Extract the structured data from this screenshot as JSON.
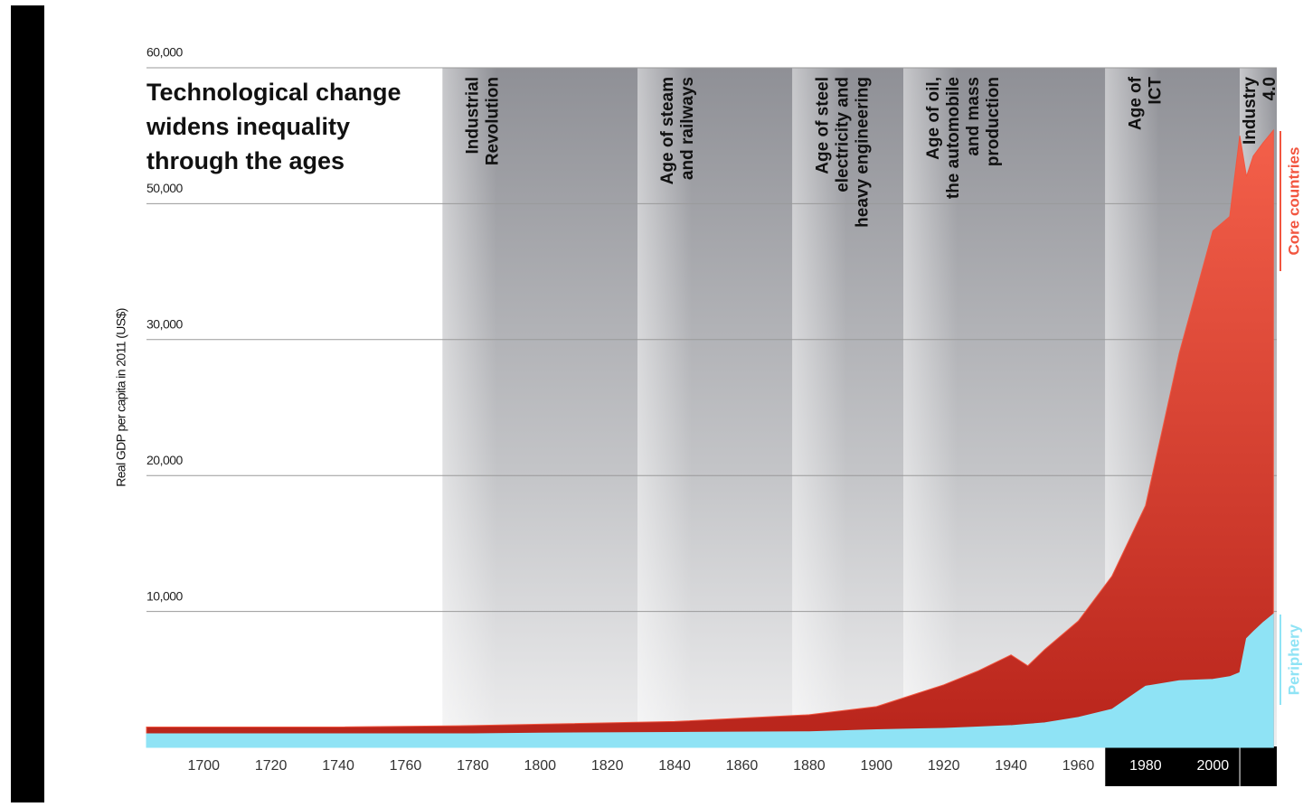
{
  "chart_data": {
    "type": "area",
    "title": [
      "Technological change",
      "widens inequality",
      "through the ages"
    ],
    "y_label": "Real GDP per capita in 2011 (US$)",
    "xlim": [
      1683,
      2019
    ],
    "xticks": [
      1700,
      1720,
      1740,
      1760,
      1780,
      1800,
      1820,
      1840,
      1860,
      1880,
      1900,
      1920,
      1940,
      1960,
      1980,
      2000
    ],
    "ylim": [
      0,
      60000
    ],
    "yticks": [
      {
        "value": 10000,
        "label": "10,000"
      },
      {
        "value": 20000,
        "label": "20,000"
      },
      {
        "value": 30000,
        "label": "30,000"
      },
      {
        "value": 50000,
        "label": "50,000"
      },
      {
        "value": 60000,
        "label": "60,000"
      }
    ],
    "grid": true,
    "eras": [
      {
        "lines": [
          "Industrial",
          "Revolution"
        ],
        "start": 1771,
        "end": 1829
      },
      {
        "lines": [
          "Age of steam",
          "and railways"
        ],
        "start": 1829,
        "end": 1875
      },
      {
        "lines": [
          "Age of steel",
          "electricity and",
          "heavy engineering"
        ],
        "start": 1875,
        "end": 1908
      },
      {
        "lines": [
          "Age of oil,",
          "the automobile",
          "and mass",
          "production"
        ],
        "start": 1908,
        "end": 1968
      },
      {
        "lines": [
          "Age of",
          "ICT"
        ],
        "start": 1968,
        "end": 2008
      },
      {
        "lines": [
          "Industry",
          "4.0"
        ],
        "start": 2008,
        "end": 2019
      }
    ],
    "x": [
      1683,
      1700,
      1740,
      1780,
      1800,
      1840,
      1880,
      1900,
      1920,
      1930,
      1940,
      1945,
      1950,
      1960,
      1970,
      1980,
      1990,
      2000,
      2005,
      2008,
      2010,
      2012,
      2015,
      2018
    ],
    "series": [
      {
        "name": "Core countries",
        "color": "#f2553f",
        "values": [
          1500,
          1500,
          1500,
          1600,
          1700,
          1900,
          2400,
          3000,
          4600,
          5600,
          6800,
          6000,
          7200,
          9300,
          12600,
          17800,
          29000,
          46000,
          48100,
          55000,
          52000,
          53500,
          54500,
          55400
        ]
      },
      {
        "name": "Periphery",
        "color": "#8fe3f5",
        "values": [
          1000,
          1000,
          1000,
          1000,
          1050,
          1100,
          1150,
          1300,
          1400,
          1500,
          1600,
          1700,
          1800,
          2200,
          2800,
          4500,
          4900,
          5000,
          5200,
          5500,
          8000,
          8500,
          9200,
          9800
        ]
      }
    ]
  }
}
